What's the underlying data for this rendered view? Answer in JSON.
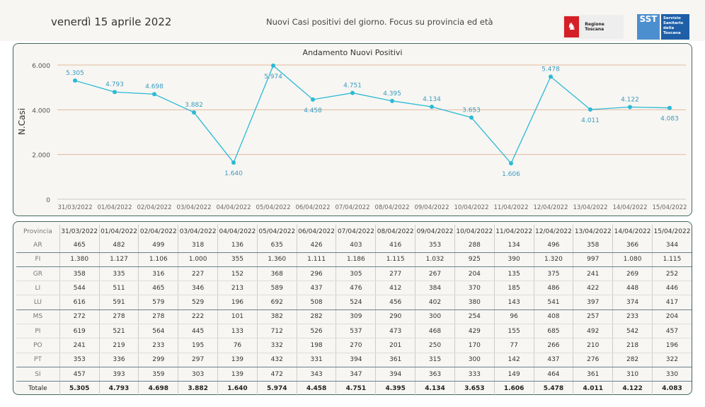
{
  "header": {
    "date": "venerdì 15 aprile 2022",
    "subtitle": "Nuovi Casi positivi del giorno. Focus su provincia ed età",
    "logo_regione": "Regione Toscana",
    "logo_sst": "SST",
    "logo_sst_text": "Servizio Sanitario della Toscana"
  },
  "colors": {
    "line": "#2bbad6",
    "label": "#3b9cc0",
    "grid": "#e6b9a0",
    "border": "#41675f"
  },
  "chart_data": {
    "type": "line",
    "title": "Andamento Nuovi Positivi",
    "xlabel": "",
    "ylabel": "N.Casi",
    "ylim": [
      0,
      6000
    ],
    "yticks": [
      "0",
      "2.000",
      "4.000",
      "6.000"
    ],
    "categories": [
      "31/03/2022",
      "01/04/2022",
      "02/04/2022",
      "03/04/2022",
      "04/04/2022",
      "05/04/2022",
      "06/04/2022",
      "07/04/2022",
      "08/04/2022",
      "09/04/2022",
      "10/04/2022",
      "11/04/2022",
      "12/04/2022",
      "13/04/2022",
      "14/04/2022",
      "15/04/2022"
    ],
    "values": [
      5305,
      4793,
      4698,
      3882,
      1640,
      5974,
      4458,
      4751,
      4395,
      4134,
      3653,
      1606,
      5478,
      4011,
      4122,
      4083
    ],
    "labels": [
      "5.305",
      "4.793",
      "4.698",
      "3.882",
      "1.640",
      "5.974",
      "4.458",
      "4.751",
      "4.395",
      "4.134",
      "3.653",
      "1.606",
      "5.478",
      "4.011",
      "4.122",
      "4.083"
    ],
    "label_below": [
      false,
      false,
      false,
      false,
      true,
      true,
      true,
      false,
      false,
      false,
      false,
      true,
      false,
      true,
      false,
      true
    ]
  },
  "table": {
    "header": "Provincia",
    "rows": [
      [
        "AR",
        "465",
        "482",
        "499",
        "318",
        "136",
        "635",
        "426",
        "403",
        "416",
        "353",
        "288",
        "134",
        "496",
        "358",
        "366",
        "344"
      ],
      [
        "FI",
        "1.380",
        "1.127",
        "1.106",
        "1.000",
        "355",
        "1.360",
        "1.111",
        "1.186",
        "1.115",
        "1.032",
        "925",
        "390",
        "1.320",
        "997",
        "1.080",
        "1.115"
      ],
      [
        "GR",
        "358",
        "335",
        "316",
        "227",
        "152",
        "368",
        "296",
        "305",
        "277",
        "267",
        "204",
        "135",
        "375",
        "241",
        "269",
        "252"
      ],
      [
        "LI",
        "544",
        "511",
        "465",
        "346",
        "213",
        "589",
        "437",
        "476",
        "412",
        "384",
        "370",
        "185",
        "486",
        "422",
        "448",
        "446"
      ],
      [
        "LU",
        "616",
        "591",
        "579",
        "529",
        "196",
        "692",
        "508",
        "524",
        "456",
        "402",
        "380",
        "143",
        "541",
        "397",
        "374",
        "417"
      ],
      [
        "MS",
        "272",
        "278",
        "278",
        "222",
        "101",
        "382",
        "282",
        "309",
        "290",
        "300",
        "254",
        "96",
        "408",
        "257",
        "233",
        "204"
      ],
      [
        "PI",
        "619",
        "521",
        "564",
        "445",
        "133",
        "712",
        "526",
        "537",
        "473",
        "468",
        "429",
        "155",
        "685",
        "492",
        "542",
        "457"
      ],
      [
        "PO",
        "241",
        "219",
        "233",
        "195",
        "76",
        "332",
        "198",
        "270",
        "201",
        "250",
        "170",
        "77",
        "266",
        "210",
        "218",
        "196"
      ],
      [
        "PT",
        "353",
        "336",
        "299",
        "297",
        "139",
        "432",
        "331",
        "394",
        "361",
        "315",
        "300",
        "142",
        "437",
        "276",
        "282",
        "322"
      ],
      [
        "SI",
        "457",
        "393",
        "359",
        "303",
        "139",
        "472",
        "343",
        "347",
        "394",
        "363",
        "333",
        "149",
        "464",
        "361",
        "310",
        "330"
      ]
    ],
    "total": [
      "Totale",
      "5.305",
      "4.793",
      "4.698",
      "3.882",
      "1.640",
      "5.974",
      "4.458",
      "4.751",
      "4.395",
      "4.134",
      "3.653",
      "1.606",
      "5.478",
      "4.011",
      "4.122",
      "4.083"
    ]
  }
}
